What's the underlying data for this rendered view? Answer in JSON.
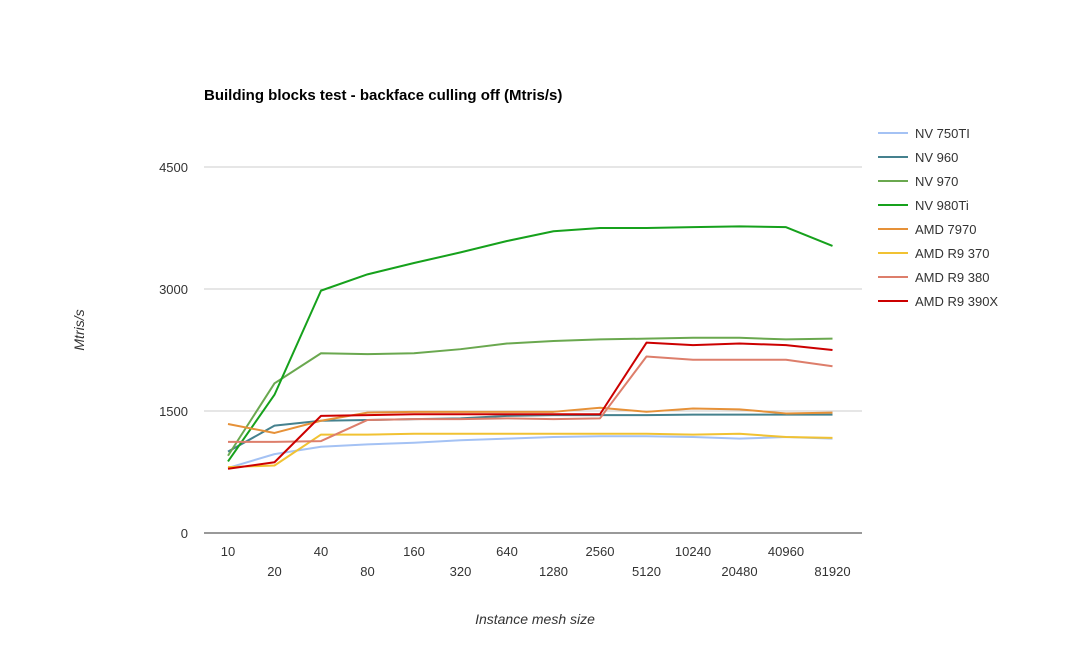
{
  "chart_data": {
    "type": "line",
    "title": "Building blocks test - backface culling off (Mtris/s)",
    "xlabel": "Instance mesh size",
    "ylabel": "Mtris/s",
    "categories": [
      "10",
      "20",
      "40",
      "80",
      "160",
      "320",
      "640",
      "1280",
      "2560",
      "5120",
      "10240",
      "20480",
      "40960",
      "81920"
    ],
    "ylim": [
      0,
      4500
    ],
    "yticks": [
      0,
      1500,
      3000,
      4500
    ],
    "grid": "horizontal",
    "legend_position": "right",
    "series": [
      {
        "name": "NV 750TI",
        "color": "#a4c2f4",
        "values": [
          800,
          970,
          1060,
          1090,
          1110,
          1140,
          1160,
          1180,
          1190,
          1190,
          1180,
          1160,
          1180,
          1160
        ]
      },
      {
        "name": "NV 960",
        "color": "#45818e",
        "values": [
          1000,
          1320,
          1380,
          1390,
          1400,
          1410,
          1440,
          1450,
          1450,
          1450,
          1455,
          1455,
          1455,
          1455
        ]
      },
      {
        "name": "NV 970",
        "color": "#6aa84f",
        "values": [
          950,
          1840,
          2210,
          2200,
          2210,
          2260,
          2330,
          2360,
          2380,
          2390,
          2400,
          2400,
          2380,
          2390
        ]
      },
      {
        "name": "NV 980Ti",
        "color": "#16a11c",
        "values": [
          880,
          1700,
          2980,
          3180,
          3320,
          3450,
          3590,
          3710,
          3750,
          3750,
          3760,
          3770,
          3760,
          3530
        ]
      },
      {
        "name": "AMD 7970",
        "color": "#e69138",
        "values": [
          1340,
          1230,
          1380,
          1480,
          1490,
          1490,
          1490,
          1490,
          1540,
          1490,
          1530,
          1520,
          1470,
          1480
        ]
      },
      {
        "name": "AMD R9 370",
        "color": "#f1c232",
        "values": [
          810,
          830,
          1210,
          1210,
          1220,
          1220,
          1220,
          1220,
          1220,
          1220,
          1210,
          1220,
          1180,
          1170
        ]
      },
      {
        "name": "AMD R9 380",
        "color": "#dd7e6b",
        "values": [
          1120,
          1120,
          1130,
          1390,
          1400,
          1400,
          1410,
          1400,
          1410,
          2170,
          2130,
          2130,
          2130,
          2050
        ]
      },
      {
        "name": "AMD R9 390X",
        "color": "#cc0000",
        "values": [
          790,
          870,
          1440,
          1450,
          1460,
          1460,
          1460,
          1460,
          1460,
          2340,
          2310,
          2330,
          2310,
          2250
        ]
      }
    ]
  }
}
